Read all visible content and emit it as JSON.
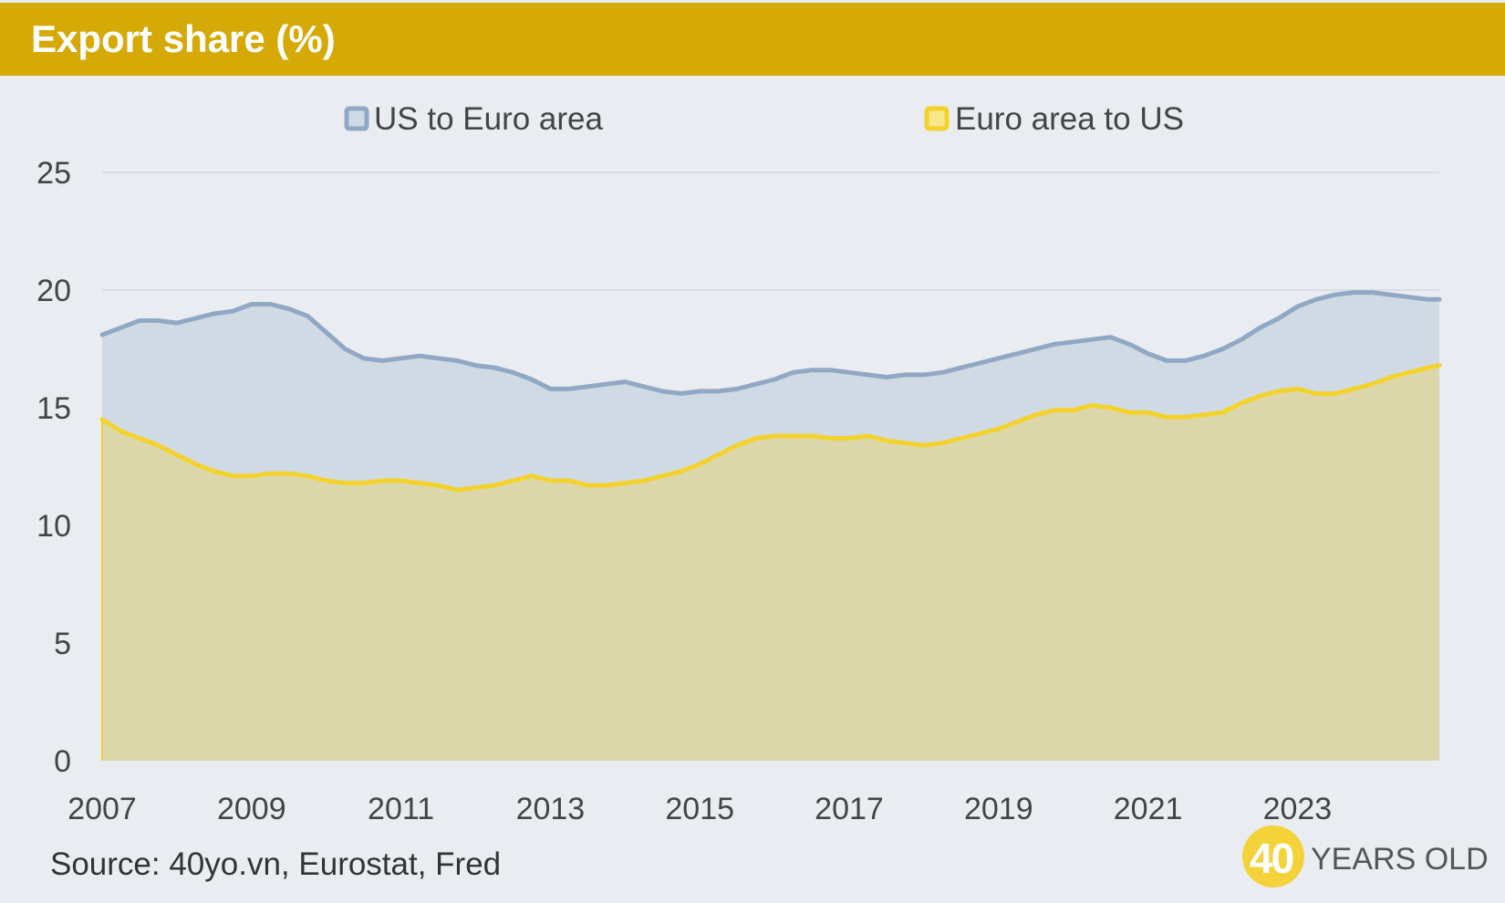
{
  "header": {
    "title": "Export share (%)"
  },
  "colors": {
    "header_bg": "#d5aa06",
    "us_to_euro_line": "#91a8c4",
    "us_to_euro_fill": "#cfdae4",
    "euro_to_us_line": "#f4d22e",
    "euro_to_us_fill": "#dbd7ab",
    "background": "#e9edf2"
  },
  "chart_data": {
    "type": "area",
    "title": "Export share (%)",
    "ylim": [
      0,
      25
    ],
    "y_ticks": [
      "0",
      "5",
      "10",
      "15",
      "20",
      "25"
    ],
    "x_ticks": [
      "2007",
      "2009",
      "2011",
      "2013",
      "2015",
      "2017",
      "2019",
      "2021",
      "2023"
    ],
    "xlim": [
      2007,
      2024.9
    ],
    "grid": true,
    "legend_position": "top",
    "x": [
      2007.0,
      2007.25,
      2007.5,
      2007.75,
      2008.0,
      2008.25,
      2008.5,
      2008.75,
      2009.0,
      2009.25,
      2009.5,
      2009.75,
      2010.0,
      2010.25,
      2010.5,
      2010.75,
      2011.0,
      2011.25,
      2011.5,
      2011.75,
      2012.0,
      2012.25,
      2012.5,
      2012.75,
      2013.0,
      2013.25,
      2013.5,
      2013.75,
      2014.0,
      2014.25,
      2014.5,
      2014.75,
      2015.0,
      2015.25,
      2015.5,
      2015.75,
      2016.0,
      2016.25,
      2016.5,
      2016.75,
      2017.0,
      2017.25,
      2017.5,
      2017.75,
      2018.0,
      2018.25,
      2018.5,
      2018.75,
      2019.0,
      2019.25,
      2019.5,
      2019.75,
      2020.0,
      2020.25,
      2020.5,
      2020.75,
      2021.0,
      2021.25,
      2021.5,
      2021.75,
      2022.0,
      2022.25,
      2022.5,
      2022.75,
      2023.0,
      2023.25,
      2023.5,
      2023.75,
      2024.0,
      2024.25,
      2024.5,
      2024.75,
      2024.9
    ],
    "series": [
      {
        "name": "US to Euro area",
        "values": [
          18.1,
          18.4,
          18.7,
          18.7,
          18.6,
          18.8,
          19.0,
          19.1,
          19.4,
          19.4,
          19.2,
          18.9,
          18.2,
          17.5,
          17.1,
          17.0,
          17.1,
          17.2,
          17.1,
          17.0,
          16.8,
          16.7,
          16.5,
          16.2,
          15.8,
          15.8,
          15.9,
          16.0,
          16.1,
          15.9,
          15.7,
          15.6,
          15.7,
          15.7,
          15.8,
          16.0,
          16.2,
          16.5,
          16.6,
          16.6,
          16.5,
          16.4,
          16.3,
          16.4,
          16.4,
          16.5,
          16.7,
          16.9,
          17.1,
          17.3,
          17.5,
          17.7,
          17.8,
          17.9,
          18.0,
          17.7,
          17.3,
          17.0,
          17.0,
          17.2,
          17.5,
          17.9,
          18.4,
          18.8,
          19.3,
          19.6,
          19.8,
          19.9,
          19.9,
          19.8,
          19.7,
          19.6,
          19.6
        ]
      },
      {
        "name": "Euro area to US",
        "values": [
          14.5,
          14.0,
          13.7,
          13.4,
          13.0,
          12.6,
          12.3,
          12.1,
          12.1,
          12.2,
          12.2,
          12.1,
          11.9,
          11.8,
          11.8,
          11.9,
          11.9,
          11.8,
          11.7,
          11.5,
          11.6,
          11.7,
          11.9,
          12.1,
          11.9,
          11.9,
          11.7,
          11.7,
          11.8,
          11.9,
          12.1,
          12.3,
          12.6,
          13.0,
          13.4,
          13.7,
          13.8,
          13.8,
          13.8,
          13.7,
          13.7,
          13.8,
          13.6,
          13.5,
          13.4,
          13.5,
          13.7,
          13.9,
          14.1,
          14.4,
          14.7,
          14.9,
          14.9,
          15.1,
          15.0,
          14.8,
          14.8,
          14.6,
          14.6,
          14.7,
          14.8,
          15.2,
          15.5,
          15.7,
          15.8,
          15.6,
          15.6,
          15.8,
          16.0,
          16.3,
          16.5,
          16.7,
          16.8
        ]
      }
    ]
  },
  "footer": {
    "source": "Source: 40yo.vn, Eurostat, Fred",
    "brand_number": "40",
    "brand_text": "YEARS OLD"
  }
}
